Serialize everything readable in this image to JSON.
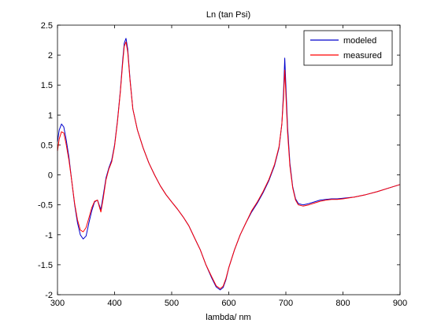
{
  "chart_data": {
    "type": "line",
    "title": "Ln (tan Psi)",
    "xlabel": "lambda/ nm",
    "ylabel": "",
    "xlim": [
      300,
      900
    ],
    "ylim": [
      -2,
      2.5
    ],
    "xticks": [
      300,
      400,
      500,
      600,
      700,
      800,
      900
    ],
    "yticks": [
      -2,
      -1.5,
      -1,
      -0.5,
      0,
      0.5,
      1,
      1.5,
      2,
      2.5
    ],
    "grid": false,
    "legend": "top-right",
    "series": [
      {
        "name": "modeled",
        "color": "#0000cc",
        "points": [
          [
            300,
            0.55
          ],
          [
            303,
            0.75
          ],
          [
            307,
            0.85
          ],
          [
            311,
            0.8
          ],
          [
            315,
            0.6
          ],
          [
            320,
            0.3
          ],
          [
            325,
            -0.1
          ],
          [
            330,
            -0.5
          ],
          [
            335,
            -0.8
          ],
          [
            340,
            -1.0
          ],
          [
            345,
            -1.07
          ],
          [
            350,
            -1.02
          ],
          [
            355,
            -0.8
          ],
          [
            360,
            -0.6
          ],
          [
            365,
            -0.45
          ],
          [
            370,
            -0.42
          ],
          [
            373,
            -0.5
          ],
          [
            376,
            -0.58
          ],
          [
            380,
            -0.35
          ],
          [
            385,
            -0.05
          ],
          [
            390,
            0.12
          ],
          [
            395,
            0.25
          ],
          [
            400,
            0.5
          ],
          [
            405,
            0.9
          ],
          [
            410,
            1.4
          ],
          [
            414,
            1.9
          ],
          [
            417,
            2.2
          ],
          [
            420,
            2.28
          ],
          [
            423,
            2.1
          ],
          [
            427,
            1.6
          ],
          [
            432,
            1.1
          ],
          [
            440,
            0.75
          ],
          [
            450,
            0.45
          ],
          [
            460,
            0.2
          ],
          [
            470,
            0.0
          ],
          [
            480,
            -0.18
          ],
          [
            490,
            -0.33
          ],
          [
            500,
            -0.45
          ],
          [
            510,
            -0.57
          ],
          [
            520,
            -0.7
          ],
          [
            530,
            -0.85
          ],
          [
            540,
            -1.05
          ],
          [
            550,
            -1.25
          ],
          [
            560,
            -1.5
          ],
          [
            570,
            -1.72
          ],
          [
            578,
            -1.87
          ],
          [
            585,
            -1.92
          ],
          [
            590,
            -1.88
          ],
          [
            595,
            -1.75
          ],
          [
            600,
            -1.55
          ],
          [
            610,
            -1.25
          ],
          [
            620,
            -1.0
          ],
          [
            630,
            -0.8
          ],
          [
            640,
            -0.62
          ],
          [
            650,
            -0.47
          ],
          [
            660,
            -0.3
          ],
          [
            670,
            -0.1
          ],
          [
            680,
            0.15
          ],
          [
            688,
            0.45
          ],
          [
            693,
            0.85
          ],
          [
            696,
            1.4
          ],
          [
            698,
            1.95
          ],
          [
            700,
            1.5
          ],
          [
            703,
            0.8
          ],
          [
            707,
            0.2
          ],
          [
            712,
            -0.2
          ],
          [
            717,
            -0.4
          ],
          [
            722,
            -0.48
          ],
          [
            730,
            -0.5
          ],
          [
            740,
            -0.48
          ],
          [
            750,
            -0.45
          ],
          [
            760,
            -0.42
          ],
          [
            770,
            -0.41
          ],
          [
            780,
            -0.4
          ],
          [
            790,
            -0.4
          ],
          [
            800,
            -0.39
          ],
          [
            820,
            -0.37
          ],
          [
            840,
            -0.33
          ],
          [
            860,
            -0.28
          ],
          [
            880,
            -0.22
          ],
          [
            900,
            -0.16
          ]
        ]
      },
      {
        "name": "measured",
        "color": "#ff0000",
        "points": [
          [
            300,
            0.4
          ],
          [
            303,
            0.6
          ],
          [
            307,
            0.72
          ],
          [
            311,
            0.7
          ],
          [
            315,
            0.52
          ],
          [
            320,
            0.25
          ],
          [
            325,
            -0.1
          ],
          [
            330,
            -0.48
          ],
          [
            335,
            -0.75
          ],
          [
            340,
            -0.92
          ],
          [
            345,
            -0.95
          ],
          [
            350,
            -0.88
          ],
          [
            355,
            -0.72
          ],
          [
            360,
            -0.55
          ],
          [
            365,
            -0.44
          ],
          [
            370,
            -0.42
          ],
          [
            373,
            -0.52
          ],
          [
            376,
            -0.62
          ],
          [
            380,
            -0.4
          ],
          [
            385,
            -0.08
          ],
          [
            390,
            0.1
          ],
          [
            395,
            0.22
          ],
          [
            400,
            0.48
          ],
          [
            405,
            0.88
          ],
          [
            410,
            1.38
          ],
          [
            414,
            1.85
          ],
          [
            417,
            2.15
          ],
          [
            420,
            2.22
          ],
          [
            423,
            2.05
          ],
          [
            427,
            1.58
          ],
          [
            432,
            1.1
          ],
          [
            440,
            0.75
          ],
          [
            450,
            0.45
          ],
          [
            460,
            0.2
          ],
          [
            470,
            0.0
          ],
          [
            480,
            -0.18
          ],
          [
            490,
            -0.33
          ],
          [
            500,
            -0.45
          ],
          [
            510,
            -0.57
          ],
          [
            520,
            -0.7
          ],
          [
            530,
            -0.85
          ],
          [
            540,
            -1.05
          ],
          [
            550,
            -1.25
          ],
          [
            560,
            -1.5
          ],
          [
            570,
            -1.7
          ],
          [
            578,
            -1.85
          ],
          [
            585,
            -1.9
          ],
          [
            590,
            -1.86
          ],
          [
            595,
            -1.73
          ],
          [
            600,
            -1.55
          ],
          [
            610,
            -1.25
          ],
          [
            620,
            -1.0
          ],
          [
            630,
            -0.8
          ],
          [
            640,
            -0.6
          ],
          [
            650,
            -0.45
          ],
          [
            660,
            -0.28
          ],
          [
            670,
            -0.08
          ],
          [
            680,
            0.17
          ],
          [
            688,
            0.47
          ],
          [
            693,
            0.85
          ],
          [
            696,
            1.3
          ],
          [
            698,
            1.75
          ],
          [
            700,
            1.35
          ],
          [
            703,
            0.7
          ],
          [
            707,
            0.15
          ],
          [
            712,
            -0.22
          ],
          [
            717,
            -0.42
          ],
          [
            722,
            -0.5
          ],
          [
            730,
            -0.52
          ],
          [
            740,
            -0.5
          ],
          [
            750,
            -0.47
          ],
          [
            760,
            -0.44
          ],
          [
            770,
            -0.42
          ],
          [
            780,
            -0.41
          ],
          [
            790,
            -0.41
          ],
          [
            800,
            -0.4
          ],
          [
            820,
            -0.37
          ],
          [
            840,
            -0.33
          ],
          [
            860,
            -0.28
          ],
          [
            880,
            -0.22
          ],
          [
            900,
            -0.16
          ]
        ]
      }
    ]
  }
}
